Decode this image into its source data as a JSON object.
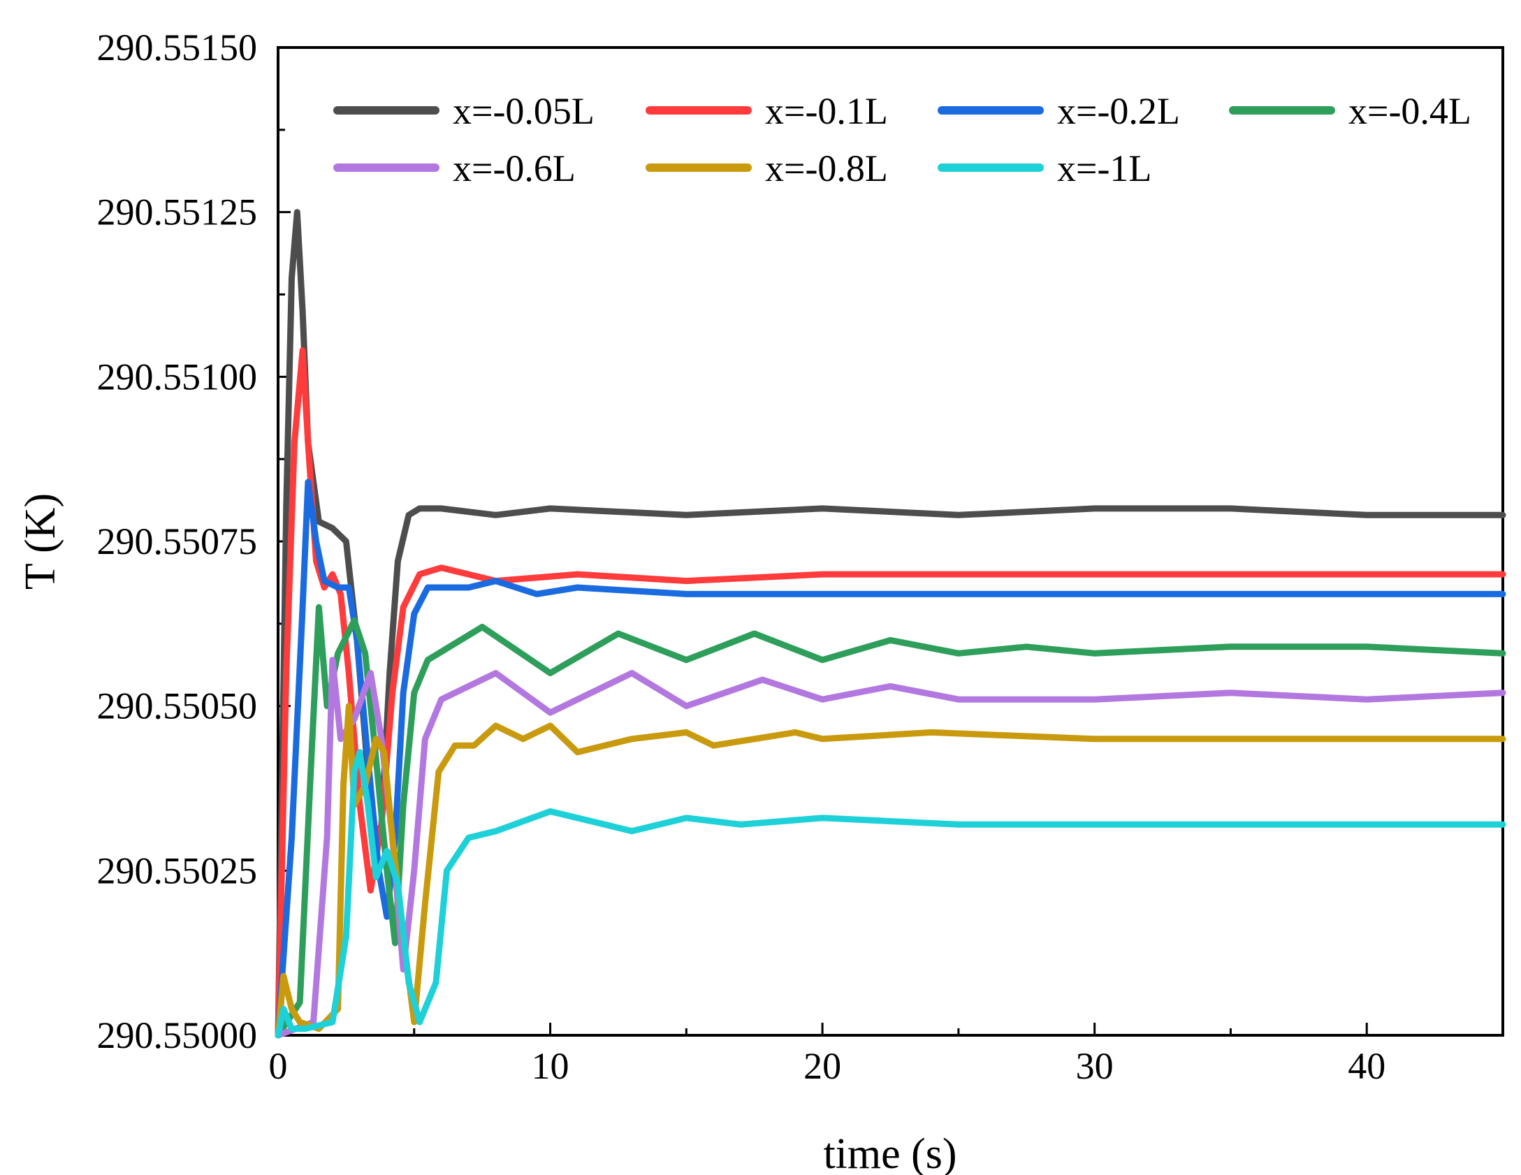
{
  "chart_data": {
    "type": "line",
    "title": "",
    "xlabel": "time (s)",
    "ylabel": "T (K)",
    "xlim": [
      0,
      45
    ],
    "ylim": [
      290.55,
      290.5515
    ],
    "x_ticks": [
      0,
      10,
      20,
      30,
      40
    ],
    "x_tick_labels": [
      "0",
      "10",
      "20",
      "30",
      "40"
    ],
    "x_minor_ticks": [
      5,
      15,
      25,
      35
    ],
    "y_ticks": [
      290.55,
      290.55025,
      290.5505,
      290.55075,
      290.551,
      290.55125,
      290.5515
    ],
    "y_tick_labels": [
      "290.55000",
      "290.55025",
      "290.55050",
      "290.55075",
      "290.55100",
      "290.55125",
      "290.55150"
    ],
    "grid": false,
    "legend_position": "top",
    "series": [
      {
        "name": "x=-0.05L",
        "color": "#4d4d4d",
        "points": [
          [
            0,
            290.55
          ],
          [
            0.3,
            290.5508
          ],
          [
            0.5,
            290.55115
          ],
          [
            0.7,
            290.55125
          ],
          [
            0.9,
            290.5511
          ],
          [
            1.1,
            290.5509
          ],
          [
            1.5,
            290.55078
          ],
          [
            2.0,
            290.55077
          ],
          [
            2.5,
            290.55075
          ],
          [
            2.9,
            290.5506
          ],
          [
            3.2,
            290.55045
          ],
          [
            3.5,
            290.55028
          ],
          [
            3.8,
            290.55032
          ],
          [
            4.1,
            290.55055
          ],
          [
            4.4,
            290.55072
          ],
          [
            4.8,
            290.55079
          ],
          [
            5.2,
            290.5508
          ],
          [
            6.0,
            290.5508
          ],
          [
            8,
            290.55079
          ],
          [
            10,
            290.5508
          ],
          [
            15,
            290.55079
          ],
          [
            20,
            290.5508
          ],
          [
            25,
            290.55079
          ],
          [
            30,
            290.5508
          ],
          [
            35,
            290.5508
          ],
          [
            40,
            290.55079
          ],
          [
            45,
            290.55079
          ]
        ]
      },
      {
        "name": "x=-0.1L",
        "color": "#ff3b3b",
        "points": [
          [
            0,
            290.55
          ],
          [
            0.3,
            290.55055
          ],
          [
            0.6,
            290.5509
          ],
          [
            0.9,
            290.55104
          ],
          [
            1.1,
            290.5509
          ],
          [
            1.4,
            290.55072
          ],
          [
            1.7,
            290.55068
          ],
          [
            2.0,
            290.5507
          ],
          [
            2.3,
            290.55067
          ],
          [
            2.6,
            290.55055
          ],
          [
            3.0,
            290.55035
          ],
          [
            3.4,
            290.55022
          ],
          [
            3.8,
            290.55032
          ],
          [
            4.2,
            290.55052
          ],
          [
            4.6,
            290.55065
          ],
          [
            5.2,
            290.5507
          ],
          [
            6,
            290.55071
          ],
          [
            8,
            290.55069
          ],
          [
            11,
            290.5507
          ],
          [
            15,
            290.55069
          ],
          [
            20,
            290.5507
          ],
          [
            30,
            290.5507
          ],
          [
            45,
            290.5507
          ]
        ]
      },
      {
        "name": "x=-0.2L",
        "color": "#1a6be0",
        "points": [
          [
            0,
            290.55
          ],
          [
            0.5,
            290.5503
          ],
          [
            0.9,
            290.55065
          ],
          [
            1.1,
            290.55084
          ],
          [
            1.4,
            290.55075
          ],
          [
            1.7,
            290.55069
          ],
          [
            2.2,
            290.55068
          ],
          [
            2.6,
            290.55068
          ],
          [
            2.9,
            290.5506
          ],
          [
            3.3,
            290.55042
          ],
          [
            3.7,
            290.55025
          ],
          [
            4.0,
            290.55018
          ],
          [
            4.3,
            290.5503
          ],
          [
            4.6,
            290.55052
          ],
          [
            5.0,
            290.55064
          ],
          [
            5.5,
            290.55068
          ],
          [
            7,
            290.55068
          ],
          [
            8,
            290.55069
          ],
          [
            9.5,
            290.55067
          ],
          [
            11,
            290.55068
          ],
          [
            15,
            290.55067
          ],
          [
            20,
            290.55067
          ],
          [
            30,
            290.55067
          ],
          [
            45,
            290.55067
          ]
        ]
      },
      {
        "name": "x=-0.4L",
        "color": "#2e9e5b",
        "points": [
          [
            0,
            290.55
          ],
          [
            0.8,
            290.55005
          ],
          [
            1.2,
            290.5504
          ],
          [
            1.5,
            290.55065
          ],
          [
            1.8,
            290.5505
          ],
          [
            2.2,
            290.55058
          ],
          [
            2.8,
            290.55063
          ],
          [
            3.2,
            290.55058
          ],
          [
            3.6,
            290.55042
          ],
          [
            4.0,
            290.55025
          ],
          [
            4.3,
            290.55014
          ],
          [
            4.6,
            290.55035
          ],
          [
            5.0,
            290.55052
          ],
          [
            5.5,
            290.55057
          ],
          [
            7.5,
            290.55062
          ],
          [
            10,
            290.55055
          ],
          [
            12.5,
            290.55061
          ],
          [
            15,
            290.55057
          ],
          [
            17.5,
            290.55061
          ],
          [
            20,
            290.55057
          ],
          [
            22.5,
            290.5506
          ],
          [
            25,
            290.55058
          ],
          [
            27.5,
            290.55059
          ],
          [
            30,
            290.55058
          ],
          [
            35,
            290.55059
          ],
          [
            40,
            290.55059
          ],
          [
            45,
            290.55058
          ]
        ]
      },
      {
        "name": "x=-0.6L",
        "color": "#b278e0",
        "points": [
          [
            0,
            290.55
          ],
          [
            1.3,
            290.55002
          ],
          [
            1.8,
            290.5503
          ],
          [
            2.0,
            290.55057
          ],
          [
            2.3,
            290.55045
          ],
          [
            2.8,
            290.55048
          ],
          [
            3.4,
            290.55055
          ],
          [
            3.8,
            290.55045
          ],
          [
            4.2,
            290.5503
          ],
          [
            4.6,
            290.5501
          ],
          [
            5.0,
            290.55025
          ],
          [
            5.4,
            290.55045
          ],
          [
            6,
            290.55051
          ],
          [
            8,
            290.55055
          ],
          [
            10,
            290.55049
          ],
          [
            13,
            290.55055
          ],
          [
            15,
            290.5505
          ],
          [
            17.8,
            290.55054
          ],
          [
            20,
            290.55051
          ],
          [
            22.5,
            290.55053
          ],
          [
            25,
            290.55051
          ],
          [
            30,
            290.55051
          ],
          [
            35,
            290.55052
          ],
          [
            40,
            290.55051
          ],
          [
            45,
            290.55052
          ]
        ]
      },
      {
        "name": "x=-0.8L",
        "color": "#c99a0e",
        "points": [
          [
            0,
            290.55
          ],
          [
            0.2,
            290.55009
          ],
          [
            0.5,
            290.55004
          ],
          [
            0.8,
            290.55002
          ],
          [
            1.5,
            290.55001
          ],
          [
            2.2,
            290.55004
          ],
          [
            2.4,
            290.55038
          ],
          [
            2.6,
            290.5505
          ],
          [
            2.8,
            290.55035
          ],
          [
            3.2,
            290.55038
          ],
          [
            3.6,
            290.55045
          ],
          [
            3.9,
            290.55043
          ],
          [
            4.2,
            290.5503
          ],
          [
            4.6,
            290.55015
          ],
          [
            5.0,
            290.55002
          ],
          [
            5.4,
            290.5502
          ],
          [
            5.9,
            290.5504
          ],
          [
            6.5,
            290.55044
          ],
          [
            7.2,
            290.55044
          ],
          [
            8,
            290.55047
          ],
          [
            9,
            290.55045
          ],
          [
            10,
            290.55047
          ],
          [
            11,
            290.55043
          ],
          [
            13,
            290.55045
          ],
          [
            15,
            290.55046
          ],
          [
            16,
            290.55044
          ],
          [
            19,
            290.55046
          ],
          [
            20,
            290.55045
          ],
          [
            24,
            290.55046
          ],
          [
            30,
            290.55045
          ],
          [
            45,
            290.55045
          ]
        ]
      },
      {
        "name": "x=-1L",
        "color": "#1ed0d8",
        "points": [
          [
            0,
            290.55
          ],
          [
            0.2,
            290.55004
          ],
          [
            0.5,
            290.55001
          ],
          [
            1.0,
            290.55001
          ],
          [
            2.0,
            290.55002
          ],
          [
            2.5,
            290.55015
          ],
          [
            2.8,
            290.5504
          ],
          [
            3.0,
            290.55043
          ],
          [
            3.3,
            290.55035
          ],
          [
            3.6,
            290.55024
          ],
          [
            4.0,
            290.55028
          ],
          [
            4.4,
            290.55023
          ],
          [
            4.8,
            290.55008
          ],
          [
            5.2,
            290.55002
          ],
          [
            5.8,
            290.55008
          ],
          [
            6.2,
            290.55025
          ],
          [
            7,
            290.5503
          ],
          [
            8,
            290.55031
          ],
          [
            10,
            290.55034
          ],
          [
            12,
            290.55032
          ],
          [
            13,
            290.55031
          ],
          [
            15,
            290.55033
          ],
          [
            17,
            290.55032
          ],
          [
            20,
            290.55033
          ],
          [
            25,
            290.55032
          ],
          [
            30,
            290.55032
          ],
          [
            45,
            290.55032
          ]
        ]
      }
    ]
  }
}
